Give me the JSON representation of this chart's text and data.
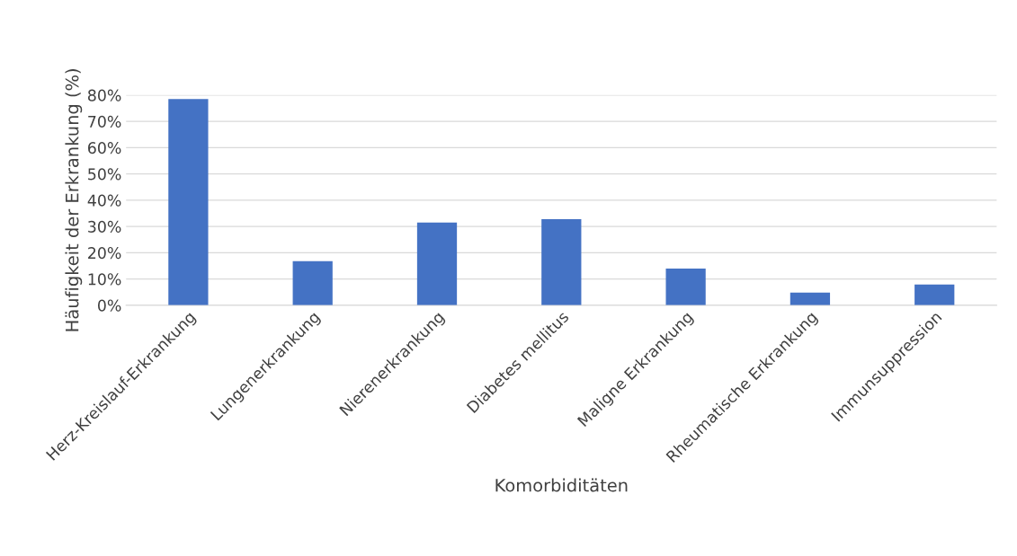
{
  "chart_data": {
    "type": "bar",
    "xlabel": "Komorbiditäten",
    "ylabel": "Häufigkeit der Erkrankung (%)",
    "categories": [
      "Herz-Kreislauf-Erkrankung",
      "Lungenerkrankung",
      "Nierenerkrankung",
      "Diabetes mellitus",
      "Maligne Erkrankung",
      "Rheumatische Erkrankung",
      "Immunsuppression"
    ],
    "values": [
      78.5,
      16.8,
      31.5,
      32.8,
      14.0,
      4.8,
      7.9
    ],
    "color": "#4472c4",
    "ylim": [
      0,
      80
    ],
    "yticks": [
      {
        "value": 0,
        "label": "0%"
      },
      {
        "value": 10,
        "label": "10%"
      },
      {
        "value": 20,
        "label": "20%"
      },
      {
        "value": 30,
        "label": "30%"
      },
      {
        "value": 40,
        "label": "40%"
      },
      {
        "value": 50,
        "label": "50%"
      },
      {
        "value": 60,
        "label": "60%"
      },
      {
        "value": 70,
        "label": "70%"
      },
      {
        "value": 80,
        "label": "80%"
      }
    ],
    "grid": "y"
  }
}
